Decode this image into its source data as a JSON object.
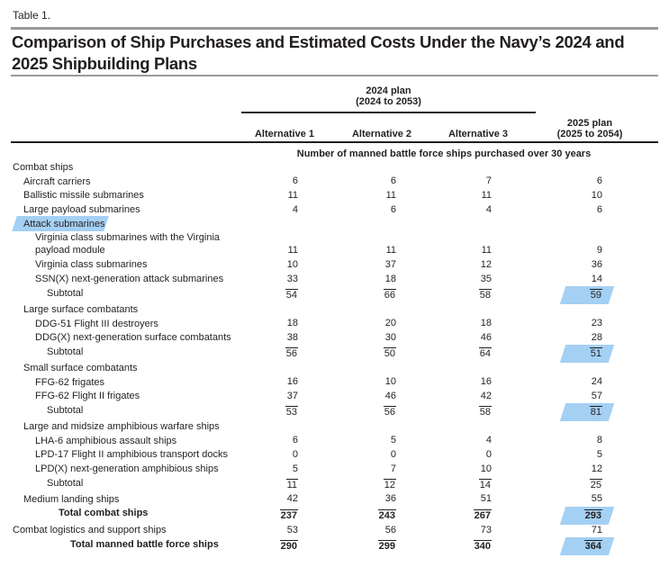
{
  "caption": "Table 1.",
  "title": "Comparison of Ship Purchases and Estimated Costs Under the Navy’s 2024 and 2025 Shipbuilding Plans",
  "header": {
    "plan_2024": "2024 plan",
    "plan_2024_range": "(2024 to 2053)",
    "alternatives": [
      "Alternative 1",
      "Alternative 2",
      "Alternative 3"
    ],
    "plan_2025": "2025 plan",
    "plan_2025_range": "(2025 to 2054)",
    "subheading": "Number of manned battle force ships purchased over 30 years"
  },
  "highlight_color": "#5aaaeb",
  "rows": [
    {
      "label": "Combat ships",
      "level": 0,
      "type": "group",
      "values": []
    },
    {
      "label": "Aircraft carriers",
      "level": 1,
      "type": "item",
      "values": [
        "6",
        "6",
        "7",
        "6"
      ]
    },
    {
      "label": "Ballistic missile submarines",
      "level": 1,
      "type": "item",
      "values": [
        "11",
        "11",
        "11",
        "10"
      ]
    },
    {
      "label": "Large payload submarines",
      "level": 1,
      "type": "item",
      "values": [
        "4",
        "6",
        "4",
        "6"
      ]
    },
    {
      "label": "Attack submarines",
      "level": 1,
      "type": "group",
      "values": [],
      "highlight_label": true
    },
    {
      "label": "Virginia class submarines with the Virginia\npayload module",
      "level": 2,
      "type": "item",
      "values": [
        "11",
        "11",
        "11",
        "9"
      ]
    },
    {
      "label": "Virginia class submarines",
      "level": 2,
      "type": "item",
      "values": [
        "10",
        "37",
        "12",
        "36"
      ]
    },
    {
      "label": "SSN(X) next-generation attack submarines",
      "level": 2,
      "type": "item",
      "values": [
        "33",
        "18",
        "35",
        "14"
      ]
    },
    {
      "label": "Subtotal",
      "level": 3,
      "type": "subtotal",
      "values": [
        "54",
        "66",
        "58",
        "59"
      ],
      "highlight_2025": true
    },
    {
      "label": "Large surface combatants",
      "level": 1,
      "type": "group",
      "values": []
    },
    {
      "label": "DDG-51 Flight III destroyers",
      "level": 2,
      "type": "item",
      "values": [
        "18",
        "20",
        "18",
        "23"
      ]
    },
    {
      "label": "DDG(X) next-generation surface combatants",
      "level": 2,
      "type": "item",
      "values": [
        "38",
        "30",
        "46",
        "28"
      ]
    },
    {
      "label": "Subtotal",
      "level": 3,
      "type": "subtotal",
      "values": [
        "56",
        "50",
        "64",
        "51"
      ],
      "highlight_2025": true
    },
    {
      "label": "Small surface combatants",
      "level": 1,
      "type": "group",
      "values": []
    },
    {
      "label": "FFG-62 frigates",
      "level": 2,
      "type": "item",
      "values": [
        "16",
        "10",
        "16",
        "24"
      ]
    },
    {
      "label": "FFG-62 Flight II frigates",
      "level": 2,
      "type": "item",
      "values": [
        "37",
        "46",
        "42",
        "57"
      ]
    },
    {
      "label": "Subtotal",
      "level": 3,
      "type": "subtotal",
      "values": [
        "53",
        "56",
        "58",
        "81"
      ],
      "highlight_2025": true
    },
    {
      "label": "Large and midsize amphibious warfare ships",
      "level": 1,
      "type": "group",
      "values": []
    },
    {
      "label": "LHA-6 amphibious assault ships",
      "level": 2,
      "type": "item",
      "values": [
        "6",
        "5",
        "4",
        "8"
      ]
    },
    {
      "label": "LPD-17 Flight II amphibious transport docks",
      "level": 2,
      "type": "item",
      "values": [
        "0",
        "0",
        "0",
        "5"
      ]
    },
    {
      "label": "LPD(X) next-generation amphibious ships",
      "level": 2,
      "type": "item",
      "values": [
        "5",
        "7",
        "10",
        "12"
      ]
    },
    {
      "label": "Subtotal",
      "level": 3,
      "type": "subtotal",
      "values": [
        "11",
        "12",
        "14",
        "25"
      ]
    },
    {
      "label": "Medium landing ships",
      "level": 1,
      "type": "item",
      "values": [
        "42",
        "36",
        "51",
        "55"
      ]
    },
    {
      "label": "Total combat ships",
      "level": 4,
      "type": "total",
      "values": [
        "237",
        "243",
        "267",
        "293"
      ],
      "highlight_2025": true
    },
    {
      "label": "Combat logistics and support ships",
      "level": 0,
      "type": "item",
      "values": [
        "53",
        "56",
        "73",
        "71"
      ]
    },
    {
      "label": "Total manned battle force ships",
      "level": 5,
      "type": "total",
      "values": [
        "290",
        "299",
        "340",
        "364"
      ],
      "highlight_2025": true
    }
  ]
}
